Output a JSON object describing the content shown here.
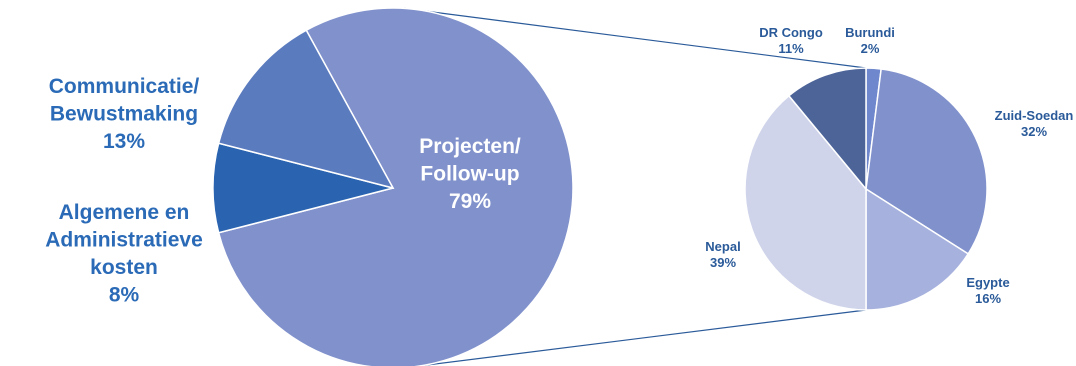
{
  "chart_data": [
    {
      "type": "pie",
      "slices": [
        {
          "label": [
            "Projecten/",
            "Follow-up"
          ],
          "value": 79,
          "value_label": "79%",
          "color": "#8091cc"
        },
        {
          "label": [
            "Algemene en",
            "Administratieve",
            "kosten"
          ],
          "value": 8,
          "value_label": "8%",
          "color": "#2a64b0"
        },
        {
          "label": [
            "Communicatie/",
            "Bewustmaking"
          ],
          "value": 13,
          "value_label": "13%",
          "color": "#5b7bbf"
        }
      ]
    },
    {
      "type": "pie",
      "slices": [
        {
          "label": [
            "Burundi"
          ],
          "value": 2,
          "value_label": "2%",
          "color": "#6f87cc"
        },
        {
          "label": [
            "Zuid-Soedan"
          ],
          "value": 32,
          "value_label": "32%",
          "color": "#8091cc"
        },
        {
          "label": [
            "Egypte"
          ],
          "value": 16,
          "value_label": "16%",
          "color": "#a6b1dd"
        },
        {
          "label": [
            "Nepal"
          ],
          "value": 39,
          "value_label": "39%",
          "color": "#cfd4ea"
        },
        {
          "label": [
            "DR Congo"
          ],
          "value": 11,
          "value_label": "11%",
          "color": "#4d6499"
        }
      ]
    }
  ],
  "colors": {
    "connector": "#2a5a99",
    "slice_border": "#ffffff"
  }
}
